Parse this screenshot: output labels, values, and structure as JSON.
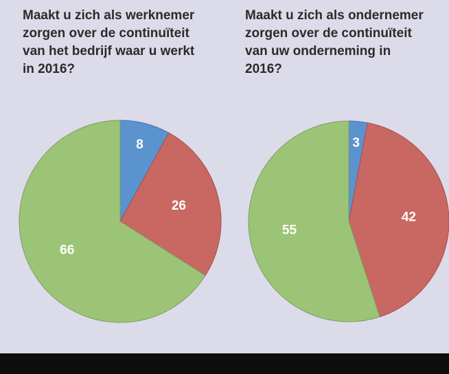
{
  "chart_data": [
    {
      "type": "pie",
      "title": [
        "Maakt u zich als werknemer",
        "zorgen over de continuïteit",
        "van het bedrijf waar u werkt",
        "in 2016?"
      ],
      "values": [
        8,
        26,
        66
      ],
      "colors": [
        "#5b93cf",
        "#c96763",
        "#9cc477"
      ]
    },
    {
      "type": "pie",
      "title": [
        "Maakt u zich als ondernemer",
        "zorgen over de continuïteit",
        "van uw onderneming in",
        "2016?"
      ],
      "values": [
        3,
        42,
        55
      ],
      "colors": [
        "#5b93cf",
        "#c96763",
        "#9cc477"
      ]
    }
  ]
}
